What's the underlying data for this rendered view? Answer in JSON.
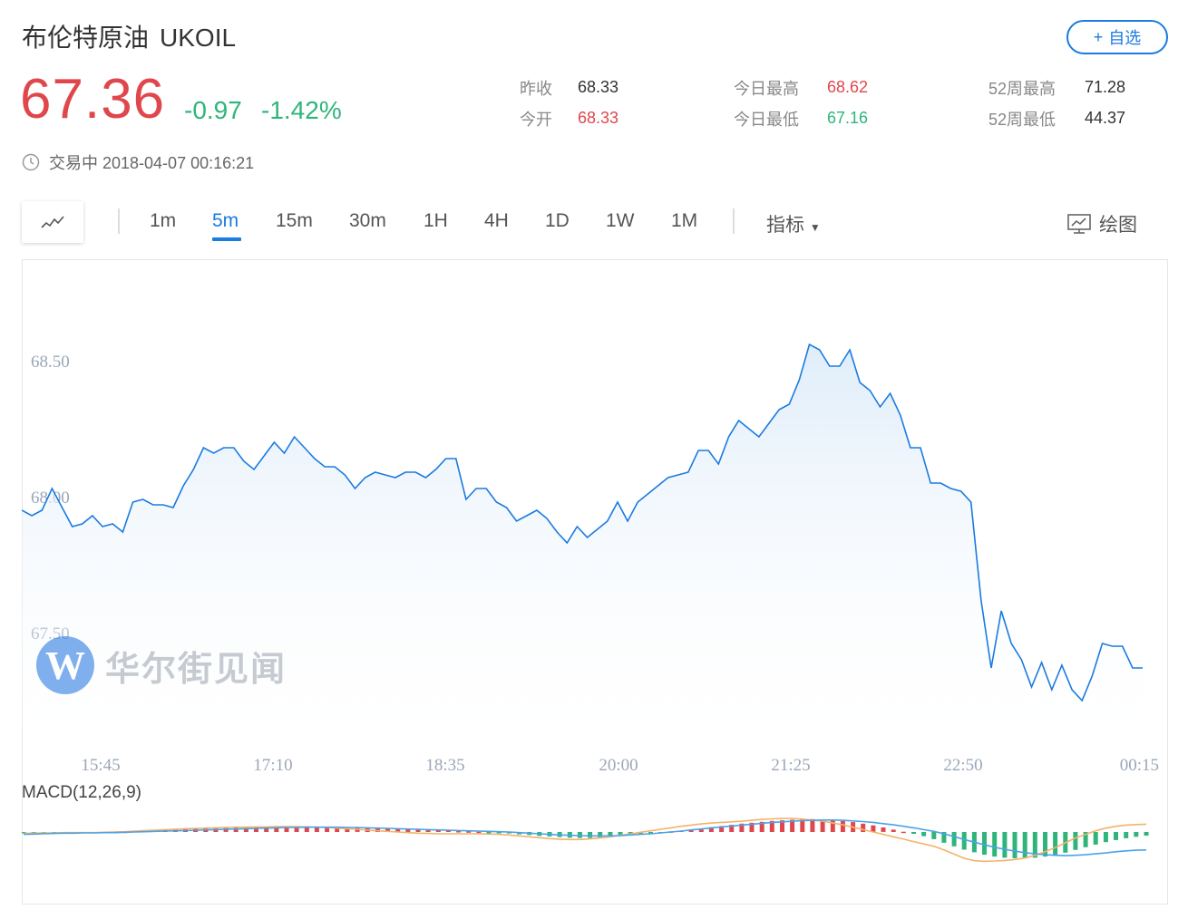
{
  "header": {
    "name": "布伦特原油",
    "symbol": "UKOIL",
    "watch_label": "自选",
    "price": "67.36",
    "change": "-0.97",
    "change_pct": "-1.42%",
    "status": "交易中 2018-04-07 00:16:21"
  },
  "stats": {
    "prev_close_label": "昨收",
    "prev_close": "68.33",
    "open_label": "今开",
    "open": "68.33",
    "high_label": "今日最高",
    "high": "68.62",
    "low_label": "今日最低",
    "low": "67.16",
    "w52_high_label": "52周最高",
    "w52_high": "71.28",
    "w52_low_label": "52周最低",
    "w52_low": "44.37"
  },
  "toolbar": {
    "timeframes": [
      "1m",
      "5m",
      "15m",
      "30m",
      "1H",
      "4H",
      "1D",
      "1W",
      "1M"
    ],
    "active_timeframe": "5m",
    "indicators_label": "指标",
    "draw_label": "绘图"
  },
  "watermark": "华尔街见闻",
  "colors": {
    "up": "#e0474c",
    "down": "#2fb57a",
    "line": "#1a7be0",
    "accent": "#1a7be0"
  },
  "chart_data": [
    {
      "type": "area",
      "xlabel": "",
      "ylabel": "",
      "y_ticks": [
        68.5,
        68.0,
        67.5
      ],
      "y_tick_labels": [
        "68.50",
        "68.00",
        "67.50"
      ],
      "ylim": [
        67.14,
        68.74
      ],
      "x_tick_labels": [
        "15:45",
        "17:10",
        "18:35",
        "20:00",
        "21:25",
        "22:50",
        "00:15"
      ],
      "grid": false,
      "values": [
        67.95,
        67.93,
        67.95,
        68.03,
        67.96,
        67.89,
        67.9,
        67.93,
        67.89,
        67.9,
        67.87,
        67.98,
        67.99,
        67.97,
        67.97,
        67.96,
        68.04,
        68.1,
        68.18,
        68.16,
        68.18,
        68.18,
        68.13,
        68.1,
        68.15,
        68.2,
        68.16,
        68.22,
        68.18,
        68.14,
        68.11,
        68.11,
        68.08,
        68.03,
        68.07,
        68.09,
        68.08,
        68.07,
        68.09,
        68.09,
        68.07,
        68.1,
        68.14,
        68.14,
        67.99,
        68.03,
        68.03,
        67.98,
        67.96,
        67.91,
        67.93,
        67.95,
        67.92,
        67.87,
        67.83,
        67.89,
        67.85,
        67.88,
        67.91,
        67.98,
        67.91,
        67.98,
        68.01,
        68.04,
        68.07,
        68.08,
        68.09,
        68.17,
        68.17,
        68.12,
        68.22,
        68.28,
        68.25,
        68.22,
        68.27,
        68.32,
        68.34,
        68.43,
        68.56,
        68.54,
        68.48,
        68.48,
        68.54,
        68.42,
        68.39,
        68.33,
        68.38,
        68.3,
        68.18,
        68.18,
        68.05,
        68.05,
        68.03,
        68.02,
        67.98,
        67.62,
        67.37,
        67.58,
        67.46,
        67.4,
        67.3,
        67.39,
        67.29,
        67.38,
        67.29,
        67.25,
        67.34,
        67.46,
        67.45,
        67.45,
        67.37,
        67.37
      ]
    },
    {
      "type": "bar",
      "title": "MACD(12,26,9)",
      "histogram": [
        -0.2,
        -0.3,
        -0.5,
        -0.4,
        -0.6,
        -0.4,
        -0.3,
        -0.2,
        -0.2,
        -0.1,
        0.1,
        0.3,
        0.4,
        0.6,
        0.7,
        0.9,
        1.0,
        1.2,
        1.3,
        1.4,
        1.5,
        1.6,
        1.7,
        1.7,
        1.8,
        1.8,
        1.9,
        1.9,
        1.9,
        1.8,
        1.8,
        1.7,
        1.6,
        1.5,
        1.4,
        1.3,
        1.2,
        1.1,
        1.0,
        0.9,
        0.8,
        0.6,
        0.5,
        0.3,
        0.2,
        0.1,
        -0.1,
        -0.3,
        -0.5,
        -0.8,
        -1.0,
        -1.3,
        -1.5,
        -1.7,
        -1.9,
        -2.0,
        -2.0,
        -1.8,
        -1.6,
        -1.3,
        -1.0,
        -0.7,
        -0.4,
        -0.1,
        0.2,
        0.5,
        0.8,
        1.2,
        1.6,
        2.0,
        2.4,
        2.8,
        3.1,
        3.4,
        3.7,
        3.9,
        4.1,
        4.2,
        4.3,
        4.2,
        4.0,
        3.7,
        3.3,
        2.8,
        2.2,
        1.5,
        0.8,
        0.1,
        -0.6,
        -1.4,
        -2.4,
        -3.6,
        -4.8,
        -5.9,
        -6.8,
        -7.6,
        -8.2,
        -8.6,
        -8.8,
        -8.8,
        -8.6,
        -8.2,
        -7.6,
        -6.9,
        -6.0,
        -5.1,
        -4.2,
        -3.4,
        -2.7,
        -2.1,
        -1.6,
        -1.2
      ],
      "dif": [
        -0.5,
        -0.4,
        -0.3,
        -0.3,
        -0.2,
        -0.2,
        -0.2,
        -0.2,
        -0.1,
        0.0,
        0.1,
        0.3,
        0.5,
        0.6,
        0.8,
        0.9,
        1.1,
        1.2,
        1.3,
        1.4,
        1.5,
        1.6,
        1.6,
        1.7,
        1.7,
        1.8,
        1.8,
        1.8,
        1.7,
        1.6,
        1.5,
        1.3,
        1.1,
        0.9,
        0.6,
        0.4,
        0.2,
        0.0,
        -0.2,
        -0.4,
        -0.5,
        -0.6,
        -0.6,
        -0.6,
        -0.6,
        -0.6,
        -0.7,
        -0.8,
        -1.0,
        -1.3,
        -1.6,
        -1.9,
        -2.2,
        -2.4,
        -2.5,
        -2.5,
        -2.3,
        -2.0,
        -1.6,
        -1.1,
        -0.6,
        -0.1,
        0.4,
        0.9,
        1.4,
        1.9,
        2.3,
        2.7,
        3.0,
        3.2,
        3.4,
        3.6,
        3.9,
        4.2,
        4.4,
        4.5,
        4.5,
        4.3,
        4.0,
        3.6,
        3.0,
        2.4,
        1.6,
        0.8,
        0.0,
        -0.8,
        -1.6,
        -2.4,
        -3.2,
        -4.0,
        -4.8,
        -6.0,
        -7.4,
        -8.8,
        -9.6,
        -9.8,
        -9.7,
        -9.5,
        -9.2,
        -8.7,
        -7.8,
        -6.6,
        -5.2,
        -3.6,
        -2.0,
        -0.8,
        0.4,
        1.3,
        1.9,
        2.3,
        2.5,
        2.6
      ],
      "dea": [
        -0.8,
        -0.7,
        -0.6,
        -0.5,
        -0.4,
        -0.4,
        -0.3,
        -0.3,
        -0.2,
        -0.2,
        -0.1,
        0.0,
        0.1,
        0.2,
        0.3,
        0.4,
        0.5,
        0.6,
        0.7,
        0.8,
        0.9,
        1.0,
        1.1,
        1.2,
        1.3,
        1.4,
        1.5,
        1.5,
        1.6,
        1.6,
        1.6,
        1.6,
        1.5,
        1.5,
        1.4,
        1.3,
        1.2,
        1.1,
        1.0,
        0.9,
        0.8,
        0.7,
        0.6,
        0.5,
        0.4,
        0.3,
        0.2,
        0.1,
        0.0,
        -0.2,
        -0.4,
        -0.6,
        -0.8,
        -1.0,
        -1.1,
        -1.2,
        -1.3,
        -1.3,
        -1.3,
        -1.2,
        -1.0,
        -0.8,
        -0.6,
        -0.3,
        0.0,
        0.3,
        0.7,
        1.0,
        1.4,
        1.7,
        2.0,
        2.3,
        2.6,
        2.9,
        3.2,
        3.4,
        3.6,
        3.8,
        3.9,
        4.0,
        4.0,
        3.9,
        3.7,
        3.5,
        3.2,
        2.8,
        2.4,
        1.9,
        1.4,
        0.8,
        0.2,
        -0.6,
        -1.5,
        -2.5,
        -3.4,
        -4.3,
        -5.1,
        -5.8,
        -6.4,
        -6.9,
        -7.3,
        -7.6,
        -7.8,
        -7.9,
        -7.8,
        -7.6,
        -7.3,
        -7.0,
        -6.6,
        -6.3,
        -6.1,
        -6.0
      ]
    }
  ]
}
